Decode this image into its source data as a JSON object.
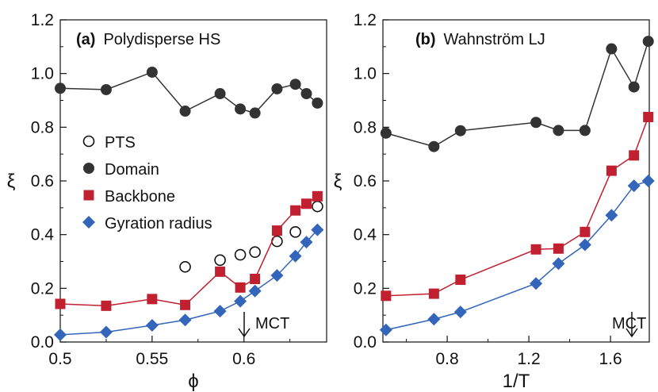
{
  "chart_data": [
    {
      "type": "scatter",
      "panel_label": "(a)",
      "title": "Polydisperse HS",
      "xlabel": "ϕ",
      "ylabel": "ξ",
      "xlim": [
        0.5,
        0.645
      ],
      "ylim": [
        0,
        1.2
      ],
      "xticks": [
        0.5,
        0.55,
        0.6
      ],
      "xtick_labels": [
        "0.5",
        "0.55",
        "0.6"
      ],
      "yticks": [
        0,
        0.2,
        0.4,
        0.6,
        0.8,
        1.0,
        1.2
      ],
      "ytick_labels": [
        "0.0",
        "0.2",
        "0.4",
        "0.6",
        "0.8",
        "1.0",
        "1.2"
      ],
      "grid": false,
      "legend_position": "center-left",
      "annotation": {
        "text": "MCT",
        "x": 0.6,
        "arrow": "down"
      },
      "series": [
        {
          "name": "PTS",
          "marker": "open-circle",
          "line": false,
          "color": "#222222",
          "x": [
            0.568,
            0.587,
            0.598,
            0.606,
            0.618,
            0.628,
            0.64
          ],
          "y": [
            0.28,
            0.305,
            0.325,
            0.335,
            0.375,
            0.41,
            0.505
          ]
        },
        {
          "name": "Domain",
          "marker": "filled-circle",
          "line": true,
          "color": "#333333",
          "x": [
            0.5,
            0.525,
            0.55,
            0.568,
            0.587,
            0.598,
            0.606,
            0.618,
            0.628,
            0.634,
            0.64
          ],
          "y": [
            0.945,
            0.94,
            1.005,
            0.86,
            0.925,
            0.868,
            0.853,
            0.943,
            0.96,
            0.925,
            0.89
          ]
        },
        {
          "name": "Backbone",
          "marker": "square",
          "line": true,
          "color": "#c0202f",
          "x": [
            0.5,
            0.525,
            0.55,
            0.568,
            0.587,
            0.598,
            0.606,
            0.618,
            0.628,
            0.634,
            0.64
          ],
          "y": [
            0.142,
            0.135,
            0.16,
            0.138,
            0.262,
            0.203,
            0.235,
            0.415,
            0.49,
            0.515,
            0.543
          ]
        },
        {
          "name": "Gyration radius",
          "marker": "diamond",
          "line": true,
          "color": "#3366bb",
          "x": [
            0.5,
            0.525,
            0.55,
            0.568,
            0.587,
            0.598,
            0.606,
            0.618,
            0.628,
            0.634,
            0.64
          ],
          "y": [
            0.027,
            0.037,
            0.062,
            0.082,
            0.115,
            0.152,
            0.19,
            0.248,
            0.32,
            0.372,
            0.418
          ]
        }
      ]
    },
    {
      "type": "scatter",
      "panel_label": "(b)",
      "title": "Wahnström LJ",
      "xlabel": "1/T",
      "ylabel": "ξ",
      "xlim": [
        0.485,
        1.79
      ],
      "ylim": [
        0,
        1.2
      ],
      "xticks": [
        0.8,
        1.2,
        1.6
      ],
      "xtick_labels": [
        "0.8",
        "1.2",
        "1.6"
      ],
      "yticks": [
        0,
        0.2,
        0.4,
        0.6,
        0.8,
        1.0,
        1.2
      ],
      "ytick_labels": [
        "0.0",
        "0.2",
        "0.4",
        "0.6",
        "0.8",
        "1.0",
        "1.2"
      ],
      "grid": false,
      "annotation": {
        "text": "MCT",
        "x": 1.72,
        "arrow": "down"
      },
      "series": [
        {
          "name": "Domain",
          "marker": "filled-circle",
          "line": true,
          "color": "#333333",
          "x": [
            0.5,
            0.735,
            0.865,
            1.235,
            1.345,
            1.475,
            1.605,
            1.715,
            1.785
          ],
          "y": [
            0.778,
            0.728,
            0.787,
            0.818,
            0.788,
            0.788,
            1.092,
            0.95,
            1.12
          ]
        },
        {
          "name": "Backbone",
          "marker": "square",
          "line": true,
          "color": "#c0202f",
          "x": [
            0.5,
            0.735,
            0.865,
            1.235,
            1.345,
            1.475,
            1.605,
            1.715,
            1.785
          ],
          "y": [
            0.172,
            0.18,
            0.232,
            0.345,
            0.348,
            0.41,
            0.638,
            0.695,
            0.838
          ]
        },
        {
          "name": "Gyration radius",
          "marker": "diamond",
          "line": true,
          "color": "#3366bb",
          "x": [
            0.5,
            0.735,
            0.865,
            1.235,
            1.345,
            1.475,
            1.605,
            1.715,
            1.785
          ],
          "y": [
            0.045,
            0.085,
            0.112,
            0.218,
            0.292,
            0.362,
            0.472,
            0.582,
            0.6
          ]
        }
      ]
    }
  ]
}
